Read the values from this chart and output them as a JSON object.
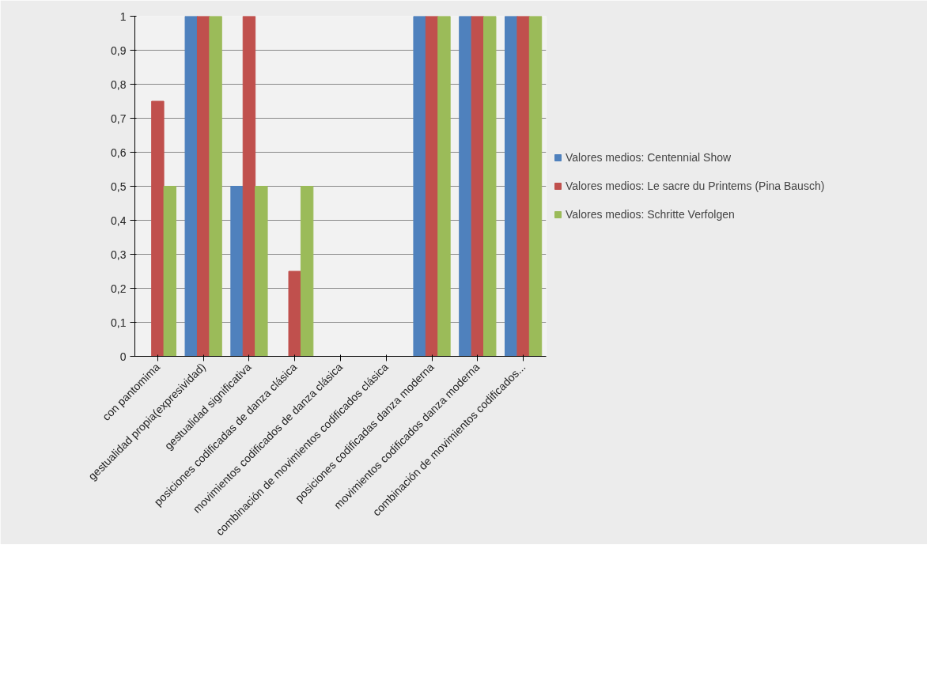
{
  "chart_data": {
    "type": "bar",
    "categories": [
      "con pantomima",
      "gestualidad propia(expresividad)",
      "gestualidad significativa",
      "posiciones codificadas de danza clásica",
      "movimientos codificados de danza clásica",
      "combinación de movimientos codificados clásica",
      "posiciones codificadas danza moderna",
      "movimientos codificados danza moderna",
      "combinación de movimientos codificados..."
    ],
    "series": [
      {
        "name": "Valores medios: Centennial Show",
        "color": "#4f81bd",
        "values": [
          0,
          1,
          0.5,
          0,
          0,
          0,
          1,
          1,
          1
        ]
      },
      {
        "name": "Valores medios: Le sacre du Printems (Pina Bausch)",
        "color": "#c0504d",
        "values": [
          0.75,
          1,
          1,
          0.25,
          0,
          0,
          1,
          1,
          1
        ]
      },
      {
        "name": "Valores medios: Schritte Verfolgen",
        "color": "#9bbb59",
        "values": [
          0.5,
          1,
          0.5,
          0.5,
          0,
          0,
          1,
          1,
          1
        ]
      }
    ],
    "ylim": [
      0,
      1
    ],
    "yticks": [
      0,
      {
        "value": 0.1,
        "label": "0,1"
      },
      {
        "value": 0.2,
        "label": "0,2"
      },
      {
        "value": 0.3,
        "label": "0,3"
      },
      {
        "value": 0.4,
        "label": "0,4"
      },
      {
        "value": 0.5,
        "label": "0,5"
      },
      {
        "value": 0.6,
        "label": "0,6"
      },
      {
        "value": 0.7,
        "label": "0,7"
      },
      {
        "value": 0.8,
        "label": "0,8"
      },
      {
        "value": 0.9,
        "label": "0,9"
      },
      1
    ],
    "grid": "y",
    "legend": "right"
  }
}
